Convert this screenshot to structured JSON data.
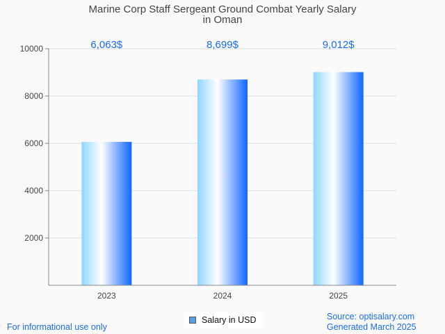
{
  "chart_data": {
    "type": "bar",
    "title": "Marine Corp Staff Sergeant Ground Combat Yearly Salary in Oman",
    "title_lines": [
      "Marine Corp Staff Sergeant Ground Combat Yearly Salary",
      "in Oman"
    ],
    "categories": [
      "2023",
      "2024",
      "2025"
    ],
    "values": [
      6063,
      8699,
      9012
    ],
    "data_labels": [
      "6,063$",
      "8,699$",
      "9,012$"
    ],
    "xlabel": "",
    "ylabel": "",
    "ylim": [
      0,
      10000
    ],
    "yticks": [
      2000,
      4000,
      6000,
      8000,
      10000
    ],
    "grid": true,
    "legend": {
      "entries": [
        "Salary in USD"
      ],
      "placement": "bottom-center"
    }
  },
  "footer": {
    "left": "For informational use only",
    "source": "Source: optisalary.com",
    "generated": "Generated March 2025"
  },
  "colors": {
    "label": "#1a6cf0",
    "bar_light": "#8fd6ff",
    "bar_dark": "#0f66ff"
  }
}
